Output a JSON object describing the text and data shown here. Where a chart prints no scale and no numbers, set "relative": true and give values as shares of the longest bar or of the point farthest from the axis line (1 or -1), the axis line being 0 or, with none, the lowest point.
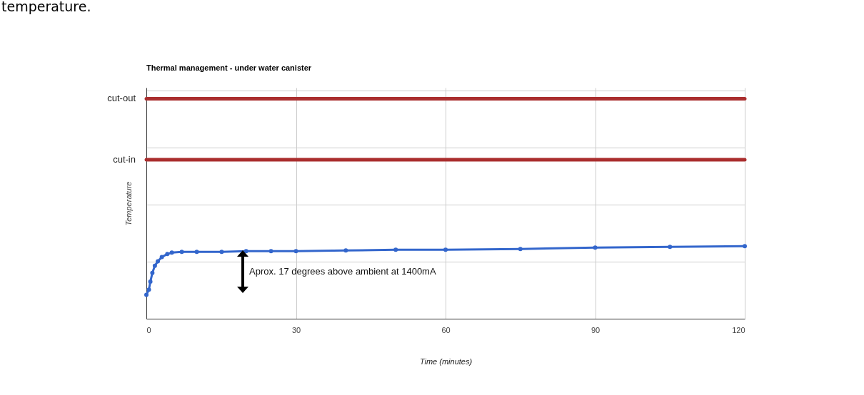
{
  "chart_data": {
    "type": "line",
    "title": "Thermal management - under water canister",
    "xlabel": "Time (minutes)",
    "ylabel": "Temperature",
    "relative": true,
    "x": [
      0,
      0.5,
      0.8,
      1.2,
      1.7,
      2.3,
      3.1,
      4.2,
      5.1,
      7.1,
      10.1,
      15.1,
      20,
      25,
      30,
      40,
      50,
      60,
      75,
      90,
      105,
      120
    ],
    "series": [
      {
        "color": "#3366cc",
        "values": [
          0.33,
          0.4,
          0.51,
          0.63,
          0.73,
          0.79,
          0.85,
          0.89,
          0.91,
          0.92,
          0.92,
          0.92,
          0.93,
          0.93,
          0.93,
          0.94,
          0.95,
          0.95,
          0.96,
          0.98,
          0.99,
          1.0
        ]
      }
    ],
    "xlim": [
      0,
      120
    ],
    "xticks": [
      0,
      30,
      60,
      90,
      120
    ],
    "grid": true,
    "marker": "circle",
    "line_style": "solid",
    "ref_lines": [
      {
        "axis": "y",
        "value": 3.03,
        "label": "cut-out",
        "color": "#aa2e2e"
      },
      {
        "axis": "y",
        "value": 2.19,
        "label": "cut-in",
        "color": "#aa2e2e"
      }
    ],
    "annotations": [
      "temperature.",
      "Aprox. 17 degrees above ambient at 1400mA"
    ]
  }
}
